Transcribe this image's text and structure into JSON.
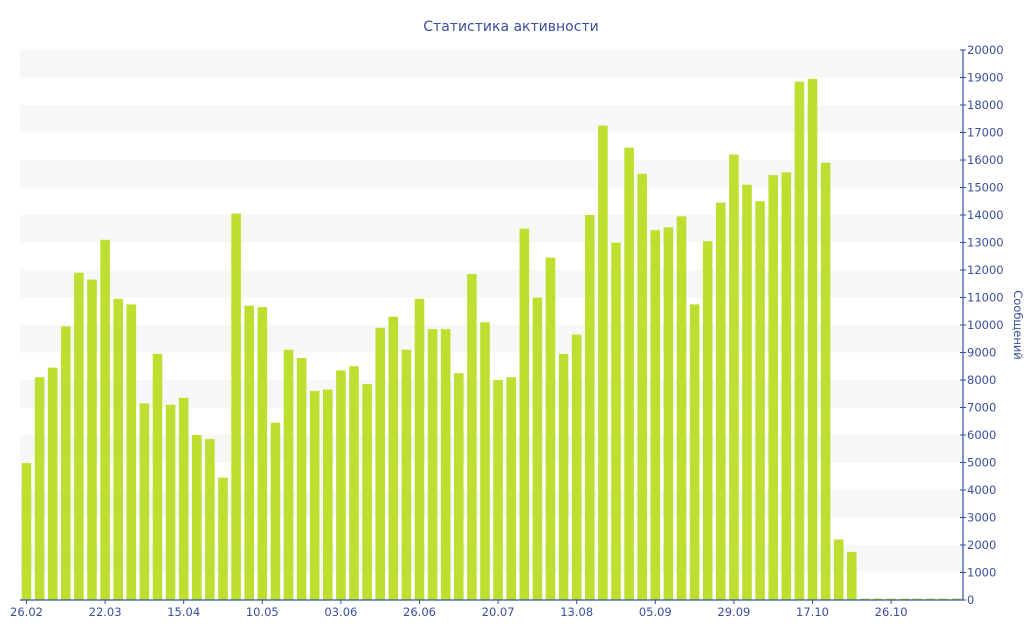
{
  "chart_data": {
    "type": "bar",
    "title": "Статистика активности",
    "xlabel": "",
    "ylabel": "Сообщений",
    "ylim": [
      0,
      20000
    ],
    "yticks": [
      0,
      1000,
      2000,
      3000,
      4000,
      5000,
      6000,
      7000,
      8000,
      9000,
      10000,
      11000,
      12000,
      13000,
      14000,
      15000,
      16000,
      17000,
      18000,
      19000,
      20000
    ],
    "xtick_labels": [
      "26.02",
      "22.03",
      "15.04",
      "10.05",
      "03.06",
      "26.06",
      "20.07",
      "13.08",
      "05.09",
      "29.09",
      "17.10",
      "26.10"
    ],
    "xtick_every": 6,
    "grid": "alternating horizontal bands",
    "y_axis_side": "right",
    "colors": {
      "bar": "#bde030",
      "axis": "#3a4f9c",
      "band": "#f7f7f7"
    },
    "values": [
      4980,
      8100,
      8450,
      9950,
      11900,
      11650,
      13100,
      10950,
      10750,
      7150,
      8950,
      7100,
      7350,
      6000,
      5850,
      4450,
      14050,
      10700,
      10650,
      6450,
      9100,
      8800,
      7600,
      7650,
      8350,
      8500,
      7850,
      9900,
      10300,
      9100,
      10950,
      9850,
      9850,
      8250,
      11850,
      10100,
      8000,
      8100,
      13500,
      11000,
      12450,
      8950,
      9650,
      14000,
      17250,
      13000,
      16450,
      15500,
      13450,
      13550,
      13950,
      10750,
      13050,
      14450,
      16200,
      15100,
      14500,
      15450,
      15550,
      18850,
      18950,
      15900,
      2200,
      1750,
      0,
      0,
      0,
      0,
      0,
      0,
      0,
      0
    ]
  }
}
